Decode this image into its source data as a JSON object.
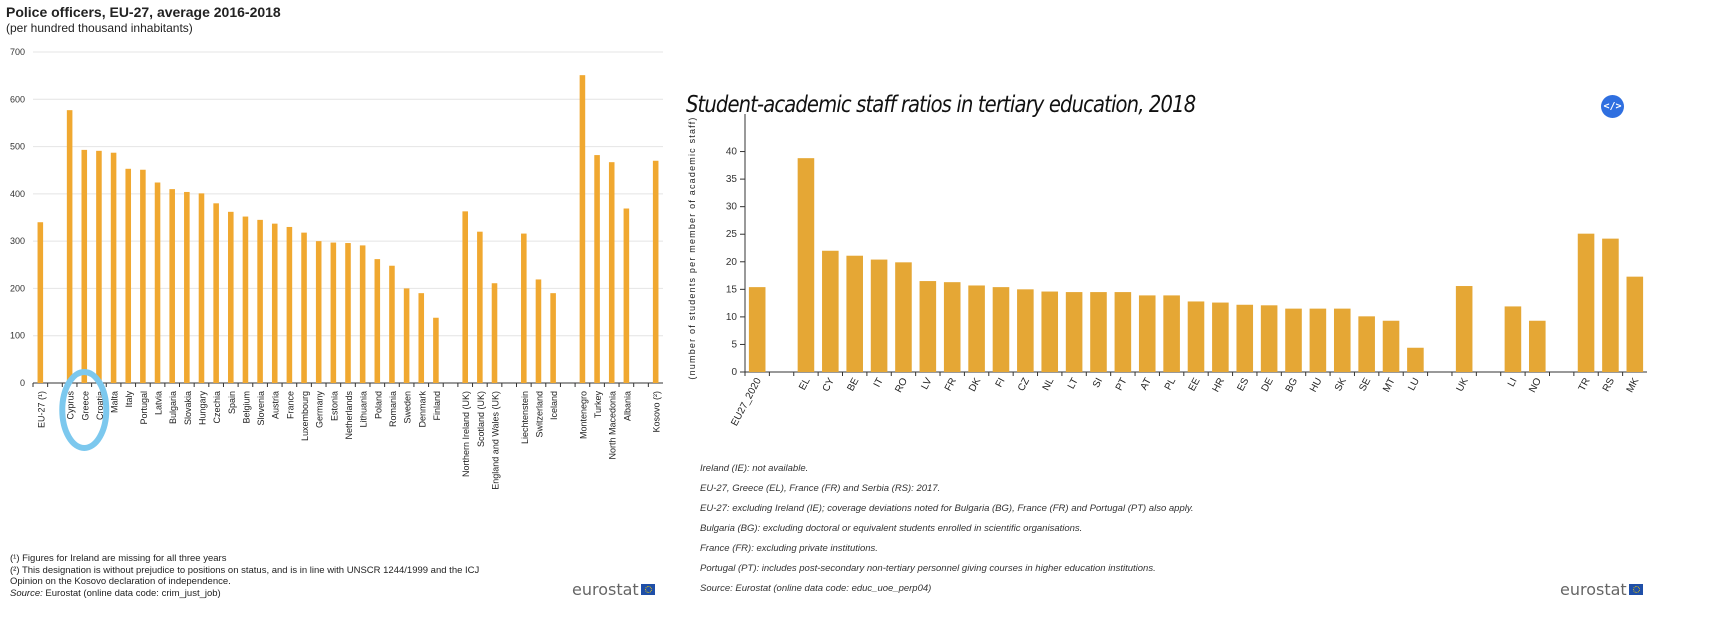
{
  "chart_data": [
    {
      "type": "bar",
      "title": "Police officers, EU-27, average 2016-2018",
      "subtitle": "(per hundred thousand inhabitants)",
      "ylim": [
        0,
        700
      ],
      "yticks": [
        0,
        100,
        200,
        300,
        400,
        500,
        600,
        700
      ],
      "grid": true,
      "categories": [
        "EU-27 (¹)",
        "",
        "Cyprus",
        "Greece",
        "Croatia",
        "Malta",
        "Italy",
        "Portugal",
        "Latvia",
        "Bulgaria",
        "Slovakia",
        "Hungary",
        "Czechia",
        "Spain",
        "Belgium",
        "Slovenia",
        "Austria",
        "France",
        "Luxembourg",
        "Germany",
        "Estonia",
        "Netherlands",
        "Lithuania",
        "Poland",
        "Romania",
        "Sweden",
        "Denmark",
        "Finland",
        "",
        "Northern Ireland (UK)",
        "Scotland (UK)",
        "England and Wales (UK)",
        "",
        "Liechtenstein",
        "Switzerland",
        "Iceland",
        "",
        "Montenegro",
        "Turkey",
        "North Macedonia",
        "Albania",
        "",
        "Kosovo (²)"
      ],
      "values": [
        340,
        null,
        577,
        493,
        491,
        487,
        453,
        451,
        424,
        410,
        404,
        401,
        380,
        362,
        352,
        345,
        337,
        330,
        318,
        300,
        297,
        296,
        291,
        262,
        248,
        200,
        190,
        138,
        null,
        363,
        320,
        211,
        null,
        316,
        219,
        190,
        null,
        651,
        482,
        467,
        369,
        null,
        470
      ],
      "highlighted": "Greece",
      "color": "#f0a830"
    },
    {
      "type": "bar",
      "title": "Student-academic staff ratios in tertiary education, 2018",
      "ylabel": "(number of students per member of academic staff)",
      "ylim": [
        0,
        45
      ],
      "yticks": [
        0,
        5,
        10,
        15,
        20,
        25,
        30,
        35,
        40
      ],
      "grid": false,
      "categories": [
        "EU27_2020",
        "",
        "EL",
        "CY",
        "BE",
        "IT",
        "RO",
        "LV",
        "FR",
        "DK",
        "FI",
        "CZ",
        "NL",
        "LT",
        "SI",
        "PT",
        "AT",
        "PL",
        "EE",
        "HR",
        "ES",
        "DE",
        "BG",
        "HU",
        "SK",
        "SE",
        "MT",
        "LU",
        "",
        "UK",
        "",
        "LI",
        "NO",
        "",
        "TR",
        "RS",
        "MK"
      ],
      "values": [
        15.4,
        null,
        38.8,
        22.0,
        21.1,
        20.4,
        19.9,
        16.5,
        16.3,
        15.7,
        15.4,
        15.0,
        14.6,
        14.5,
        14.5,
        14.5,
        13.9,
        13.9,
        12.8,
        12.6,
        12.2,
        12.1,
        11.5,
        11.5,
        11.5,
        10.1,
        9.3,
        4.4,
        null,
        15.6,
        null,
        11.9,
        9.3,
        null,
        25.1,
        24.2,
        17.3
      ],
      "color": "#e5a735"
    }
  ],
  "left": {
    "footnotes": [
      "(¹) Figures for Ireland are missing for all three years",
      "(²) This designation is without prejudice to positions on status, and is in line with UNSCR 1244/1999 and the ICJ",
      "Opinion on the Kosovo declaration of independence."
    ],
    "source_label": "Source:",
    "source": " Eurostat (online data code: crim_just_job)",
    "logo": "eurostat"
  },
  "right": {
    "embed_label": "</>",
    "footnotes": [
      "Ireland (IE): not available.",
      "EU-27, Greece (EL), France (FR) and Serbia (RS): 2017.",
      "EU-27: excluding Ireland (IE); coverage deviations noted for Bulgaria (BG), France (FR) and Portugal (PT) also apply.",
      "Bulgaria (BG): excluding doctoral or equivalent students enrolled in scientific organisations.",
      "France (FR): excluding private institutions.",
      "Portugal (PT): includes post-secondary non-tertiary personnel giving courses in higher education institutions.",
      "Source: Eurostat (online data code: educ_uoe_perp04)"
    ],
    "logo": "eurostat"
  }
}
